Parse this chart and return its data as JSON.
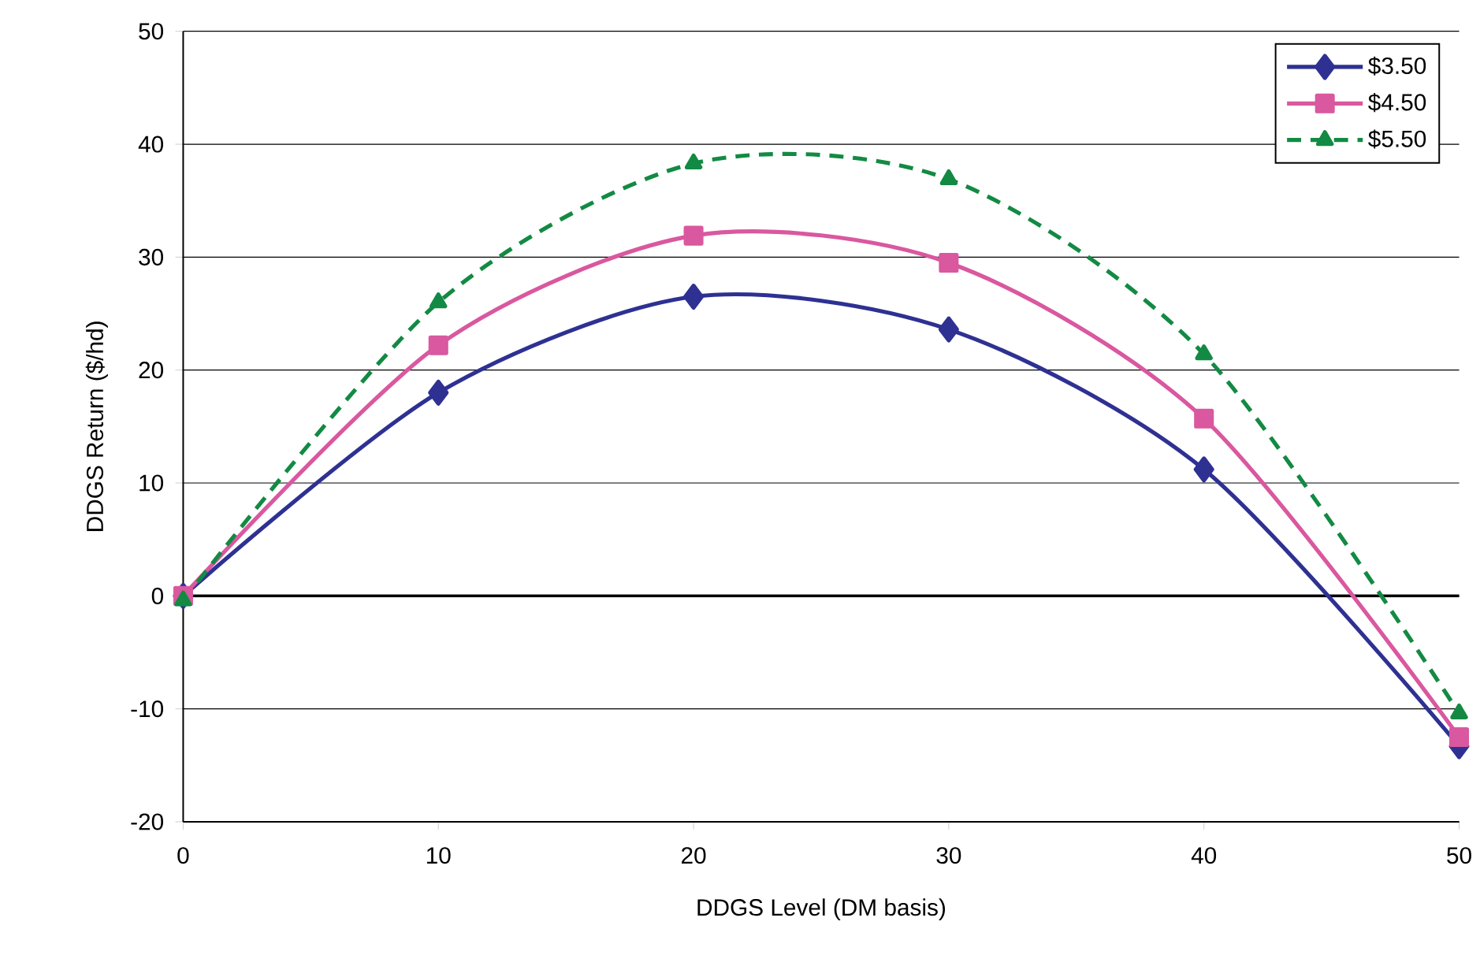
{
  "chart_data": {
    "type": "line",
    "xlabel": "DDGS Level (DM basis)",
    "ylabel": "DDGS Return ($/hd)",
    "x": [
      0,
      10,
      20,
      30,
      40,
      50
    ],
    "series": [
      {
        "name": "$3.50",
        "color": "#2e3192",
        "marker": "diamond",
        "line_style": "solid",
        "values": [
          0,
          18,
          26.5,
          23.6,
          11.2,
          -13.3
        ]
      },
      {
        "name": "$4.50",
        "color": "#d9589f",
        "marker": "square",
        "line_style": "solid",
        "values": [
          0,
          22.2,
          31.9,
          29.5,
          15.7,
          -12.5
        ]
      },
      {
        "name": "$5.50",
        "color": "#138a43",
        "marker": "triangle",
        "line_style": "dashed",
        "values": [
          -0.4,
          26,
          38.3,
          36.9,
          21.4,
          -10.4
        ]
      }
    ],
    "xlim": [
      0,
      50
    ],
    "ylim": [
      -20,
      50
    ],
    "xticks": [
      0,
      10,
      20,
      30,
      40,
      50
    ],
    "yticks": [
      -20,
      -10,
      0,
      10,
      20,
      30,
      40,
      50
    ],
    "grid": "y",
    "legend": "top right",
    "ref_lines": [
      {
        "axis": "y",
        "value": 0,
        "color": "#000000"
      }
    ]
  }
}
